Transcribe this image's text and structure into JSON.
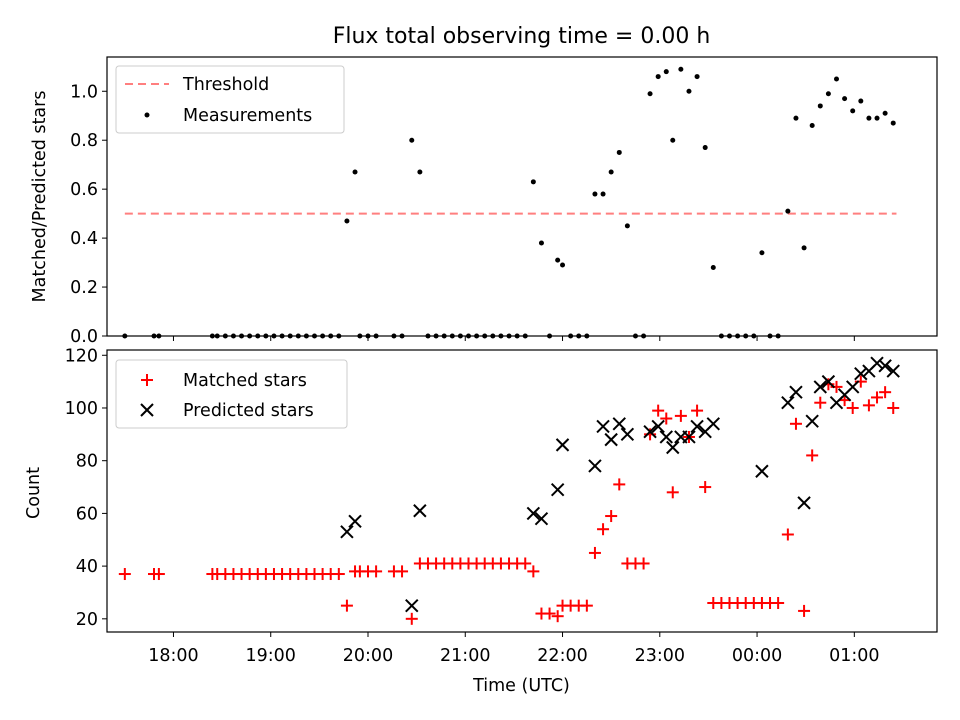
{
  "chart_data": [
    {
      "type": "scatter",
      "title": "Flux total observing time = 0.00 h",
      "xlabel": "",
      "ylabel": "Matched/Predicted stars",
      "xlim": [
        "17:19",
        "01:51"
      ],
      "ylim": [
        0,
        1.14
      ],
      "yticks": [
        0.0,
        0.2,
        0.4,
        0.6,
        0.8,
        1.0
      ],
      "yticklabels": [
        "0.0",
        "0.2",
        "0.4",
        "0.6",
        "0.8",
        "1.0"
      ],
      "grid": false,
      "legend": "top-left",
      "series": [
        {
          "name": "Threshold",
          "kind": "dashed-line",
          "color": "#ff7f7f",
          "points": [
            {
              "x": "17:30",
              "y": 0.5
            },
            {
              "x": "01:26",
              "y": 0.5
            }
          ]
        },
        {
          "name": "Measurements",
          "kind": "dot",
          "color": "#000000",
          "points": [
            {
              "x": "17:30",
              "y": 0
            },
            {
              "x": "17:48",
              "y": 0
            },
            {
              "x": "17:51",
              "y": 0
            },
            {
              "x": "18:24",
              "y": 0
            },
            {
              "x": "18:27",
              "y": 0
            },
            {
              "x": "18:32",
              "y": 0
            },
            {
              "x": "18:37",
              "y": 0
            },
            {
              "x": "18:42",
              "y": 0
            },
            {
              "x": "18:47",
              "y": 0
            },
            {
              "x": "18:52",
              "y": 0
            },
            {
              "x": "18:57",
              "y": 0
            },
            {
              "x": "19:02",
              "y": 0
            },
            {
              "x": "19:07",
              "y": 0
            },
            {
              "x": "19:12",
              "y": 0
            },
            {
              "x": "19:17",
              "y": 0
            },
            {
              "x": "19:22",
              "y": 0
            },
            {
              "x": "19:27",
              "y": 0
            },
            {
              "x": "19:32",
              "y": 0
            },
            {
              "x": "19:37",
              "y": 0
            },
            {
              "x": "19:42",
              "y": 0
            },
            {
              "x": "19:47",
              "y": 0.47
            },
            {
              "x": "19:52",
              "y": 0.67
            },
            {
              "x": "19:55",
              "y": 0
            },
            {
              "x": "20:00",
              "y": 0
            },
            {
              "x": "20:05",
              "y": 0
            },
            {
              "x": "20:16",
              "y": 0
            },
            {
              "x": "20:21",
              "y": 0
            },
            {
              "x": "20:27",
              "y": 0.8
            },
            {
              "x": "20:32",
              "y": 0.67
            },
            {
              "x": "20:37",
              "y": 0
            },
            {
              "x": "20:42",
              "y": 0
            },
            {
              "x": "20:47",
              "y": 0
            },
            {
              "x": "20:52",
              "y": 0
            },
            {
              "x": "20:57",
              "y": 0
            },
            {
              "x": "21:02",
              "y": 0
            },
            {
              "x": "21:07",
              "y": 0
            },
            {
              "x": "21:12",
              "y": 0
            },
            {
              "x": "21:17",
              "y": 0
            },
            {
              "x": "21:22",
              "y": 0
            },
            {
              "x": "21:27",
              "y": 0
            },
            {
              "x": "21:32",
              "y": 0
            },
            {
              "x": "21:37",
              "y": 0
            },
            {
              "x": "21:42",
              "y": 0.63
            },
            {
              "x": "21:47",
              "y": 0.38
            },
            {
              "x": "21:52",
              "y": 0
            },
            {
              "x": "21:57",
              "y": 0.31
            },
            {
              "x": "22:00",
              "y": 0.29
            },
            {
              "x": "22:05",
              "y": 0
            },
            {
              "x": "22:10",
              "y": 0
            },
            {
              "x": "22:15",
              "y": 0
            },
            {
              "x": "22:20",
              "y": 0.58
            },
            {
              "x": "22:25",
              "y": 0.58
            },
            {
              "x": "22:30",
              "y": 0.67
            },
            {
              "x": "22:35",
              "y": 0.75
            },
            {
              "x": "22:40",
              "y": 0.45
            },
            {
              "x": "22:45",
              "y": 0
            },
            {
              "x": "22:50",
              "y": 0
            },
            {
              "x": "22:54",
              "y": 0.99
            },
            {
              "x": "22:59",
              "y": 1.06
            },
            {
              "x": "23:04",
              "y": 1.08
            },
            {
              "x": "23:08",
              "y": 0.8
            },
            {
              "x": "23:13",
              "y": 1.09
            },
            {
              "x": "23:18",
              "y": 1.0
            },
            {
              "x": "23:23",
              "y": 1.06
            },
            {
              "x": "23:28",
              "y": 0.77
            },
            {
              "x": "23:33",
              "y": 0.28
            },
            {
              "x": "23:38",
              "y": 0
            },
            {
              "x": "23:43",
              "y": 0
            },
            {
              "x": "23:48",
              "y": 0
            },
            {
              "x": "23:53",
              "y": 0
            },
            {
              "x": "23:58",
              "y": 0
            },
            {
              "x": "00:03",
              "y": 0.34
            },
            {
              "x": "00:08",
              "y": 0
            },
            {
              "x": "00:13",
              "y": 0
            },
            {
              "x": "00:19",
              "y": 0.51
            },
            {
              "x": "00:24",
              "y": 0.89
            },
            {
              "x": "00:29",
              "y": 0.36
            },
            {
              "x": "00:34",
              "y": 0.86
            },
            {
              "x": "00:39",
              "y": 0.94
            },
            {
              "x": "00:44",
              "y": 0.99
            },
            {
              "x": "00:49",
              "y": 1.05
            },
            {
              "x": "00:54",
              "y": 0.97
            },
            {
              "x": "00:59",
              "y": 0.92
            },
            {
              "x": "01:04",
              "y": 0.96
            },
            {
              "x": "01:09",
              "y": 0.89
            },
            {
              "x": "01:14",
              "y": 0.89
            },
            {
              "x": "01:19",
              "y": 0.91
            },
            {
              "x": "01:24",
              "y": 0.87
            }
          ]
        }
      ]
    },
    {
      "type": "scatter",
      "title": "",
      "xlabel": "Time (UTC)",
      "ylabel": "Count",
      "xlim": [
        "17:19",
        "01:51"
      ],
      "ylim": [
        15,
        122
      ],
      "yticks": [
        20,
        40,
        60,
        80,
        100,
        120
      ],
      "yticklabels": [
        "20",
        "40",
        "60",
        "80",
        "100",
        "120"
      ],
      "xticks": [
        "18:00",
        "19:00",
        "20:00",
        "21:00",
        "22:00",
        "23:00",
        "00:00",
        "01:00"
      ],
      "grid": false,
      "legend": "top-left",
      "series": [
        {
          "name": "Matched stars",
          "marker": "plus",
          "color": "#ff0000",
          "points": [
            {
              "x": "17:30",
              "y": 37
            },
            {
              "x": "17:48",
              "y": 37
            },
            {
              "x": "17:51",
              "y": 37
            },
            {
              "x": "18:24",
              "y": 37
            },
            {
              "x": "18:27",
              "y": 37
            },
            {
              "x": "18:32",
              "y": 37
            },
            {
              "x": "18:37",
              "y": 37
            },
            {
              "x": "18:42",
              "y": 37
            },
            {
              "x": "18:47",
              "y": 37
            },
            {
              "x": "18:52",
              "y": 37
            },
            {
              "x": "18:57",
              "y": 37
            },
            {
              "x": "19:02",
              "y": 37
            },
            {
              "x": "19:07",
              "y": 37
            },
            {
              "x": "19:12",
              "y": 37
            },
            {
              "x": "19:17",
              "y": 37
            },
            {
              "x": "19:22",
              "y": 37
            },
            {
              "x": "19:27",
              "y": 37
            },
            {
              "x": "19:32",
              "y": 37
            },
            {
              "x": "19:37",
              "y": 37
            },
            {
              "x": "19:42",
              "y": 37
            },
            {
              "x": "19:47",
              "y": 25
            },
            {
              "x": "19:52",
              "y": 38
            },
            {
              "x": "19:55",
              "y": 38
            },
            {
              "x": "20:00",
              "y": 38
            },
            {
              "x": "20:05",
              "y": 38
            },
            {
              "x": "20:16",
              "y": 38
            },
            {
              "x": "20:21",
              "y": 38
            },
            {
              "x": "20:27",
              "y": 20
            },
            {
              "x": "20:32",
              "y": 41
            },
            {
              "x": "20:37",
              "y": 41
            },
            {
              "x": "20:42",
              "y": 41
            },
            {
              "x": "20:47",
              "y": 41
            },
            {
              "x": "20:52",
              "y": 41
            },
            {
              "x": "20:57",
              "y": 41
            },
            {
              "x": "21:02",
              "y": 41
            },
            {
              "x": "21:07",
              "y": 41
            },
            {
              "x": "21:12",
              "y": 41
            },
            {
              "x": "21:17",
              "y": 41
            },
            {
              "x": "21:22",
              "y": 41
            },
            {
              "x": "21:27",
              "y": 41
            },
            {
              "x": "21:32",
              "y": 41
            },
            {
              "x": "21:37",
              "y": 41
            },
            {
              "x": "21:42",
              "y": 38
            },
            {
              "x": "21:47",
              "y": 22
            },
            {
              "x": "21:52",
              "y": 22
            },
            {
              "x": "21:57",
              "y": 21
            },
            {
              "x": "22:00",
              "y": 25
            },
            {
              "x": "22:05",
              "y": 25
            },
            {
              "x": "22:10",
              "y": 25
            },
            {
              "x": "22:15",
              "y": 25
            },
            {
              "x": "22:20",
              "y": 45
            },
            {
              "x": "22:25",
              "y": 54
            },
            {
              "x": "22:30",
              "y": 59
            },
            {
              "x": "22:35",
              "y": 71
            },
            {
              "x": "22:40",
              "y": 41
            },
            {
              "x": "22:45",
              "y": 41
            },
            {
              "x": "22:50",
              "y": 41
            },
            {
              "x": "22:54",
              "y": 90
            },
            {
              "x": "22:59",
              "y": 99
            },
            {
              "x": "23:04",
              "y": 96
            },
            {
              "x": "23:08",
              "y": 68
            },
            {
              "x": "23:13",
              "y": 97
            },
            {
              "x": "23:18",
              "y": 89
            },
            {
              "x": "23:23",
              "y": 99
            },
            {
              "x": "23:28",
              "y": 70
            },
            {
              "x": "23:33",
              "y": 26
            },
            {
              "x": "23:38",
              "y": 26
            },
            {
              "x": "23:43",
              "y": 26
            },
            {
              "x": "23:48",
              "y": 26
            },
            {
              "x": "23:53",
              "y": 26
            },
            {
              "x": "23:58",
              "y": 26
            },
            {
              "x": "00:03",
              "y": 26
            },
            {
              "x": "00:08",
              "y": 26
            },
            {
              "x": "00:13",
              "y": 26
            },
            {
              "x": "00:19",
              "y": 52
            },
            {
              "x": "00:24",
              "y": 94
            },
            {
              "x": "00:29",
              "y": 23
            },
            {
              "x": "00:34",
              "y": 82
            },
            {
              "x": "00:39",
              "y": 102
            },
            {
              "x": "00:44",
              "y": 109
            },
            {
              "x": "00:49",
              "y": 108
            },
            {
              "x": "00:54",
              "y": 103
            },
            {
              "x": "00:59",
              "y": 100
            },
            {
              "x": "01:04",
              "y": 110
            },
            {
              "x": "01:09",
              "y": 101
            },
            {
              "x": "01:14",
              "y": 104
            },
            {
              "x": "01:19",
              "y": 106
            },
            {
              "x": "01:24",
              "y": 100
            }
          ]
        },
        {
          "name": "Predicted stars",
          "marker": "x",
          "color": "#000000",
          "points": [
            {
              "x": "19:47",
              "y": 53
            },
            {
              "x": "19:52",
              "y": 57
            },
            {
              "x": "20:27",
              "y": 25
            },
            {
              "x": "20:32",
              "y": 61
            },
            {
              "x": "21:42",
              "y": 60
            },
            {
              "x": "21:47",
              "y": 58
            },
            {
              "x": "21:57",
              "y": 69
            },
            {
              "x": "22:00",
              "y": 86
            },
            {
              "x": "22:20",
              "y": 78
            },
            {
              "x": "22:25",
              "y": 93
            },
            {
              "x": "22:30",
              "y": 88
            },
            {
              "x": "22:35",
              "y": 94
            },
            {
              "x": "22:40",
              "y": 90
            },
            {
              "x": "22:54",
              "y": 91
            },
            {
              "x": "22:59",
              "y": 93
            },
            {
              "x": "23:04",
              "y": 89
            },
            {
              "x": "23:08",
              "y": 85
            },
            {
              "x": "23:13",
              "y": 89
            },
            {
              "x": "23:18",
              "y": 89
            },
            {
              "x": "23:23",
              "y": 93
            },
            {
              "x": "23:28",
              "y": 91
            },
            {
              "x": "23:33",
              "y": 94
            },
            {
              "x": "00:03",
              "y": 76
            },
            {
              "x": "00:19",
              "y": 102
            },
            {
              "x": "00:24",
              "y": 106
            },
            {
              "x": "00:29",
              "y": 64
            },
            {
              "x": "00:34",
              "y": 95
            },
            {
              "x": "00:39",
              "y": 108
            },
            {
              "x": "00:44",
              "y": 110
            },
            {
              "x": "00:49",
              "y": 102
            },
            {
              "x": "00:54",
              "y": 105
            },
            {
              "x": "00:59",
              "y": 108
            },
            {
              "x": "01:04",
              "y": 113
            },
            {
              "x": "01:09",
              "y": 114
            },
            {
              "x": "01:14",
              "y": 117
            },
            {
              "x": "01:19",
              "y": 116
            },
            {
              "x": "01:24",
              "y": 114
            }
          ]
        }
      ]
    }
  ]
}
